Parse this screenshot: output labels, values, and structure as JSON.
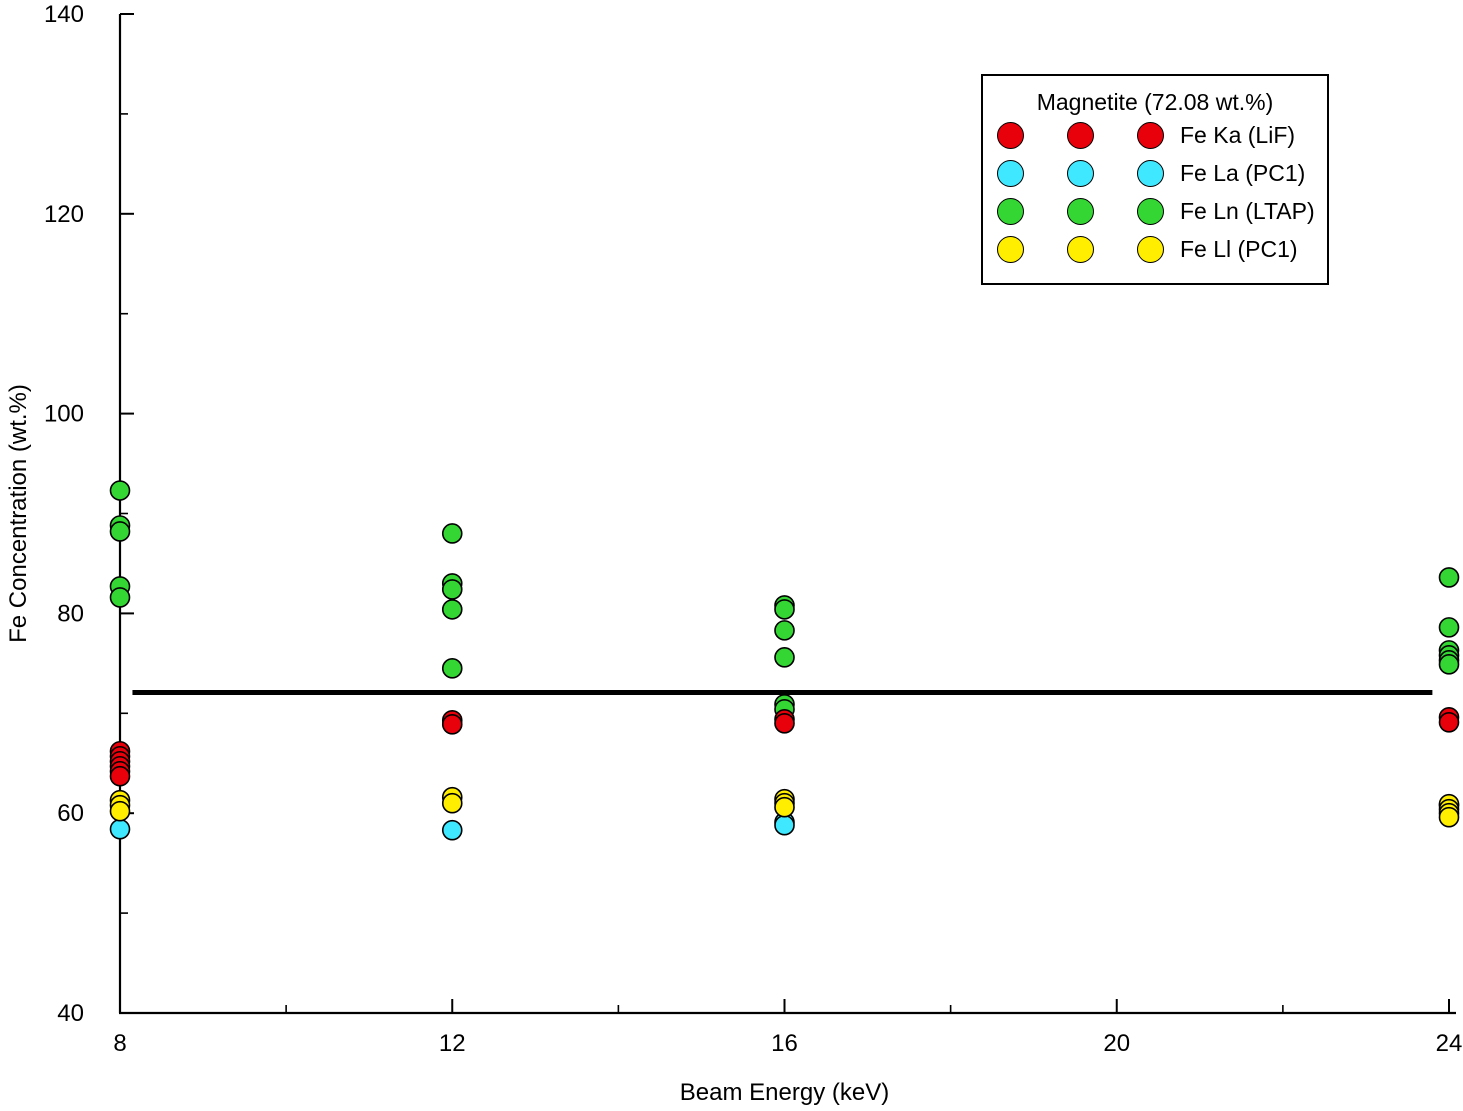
{
  "chart_data": {
    "type": "scatter",
    "title": "",
    "xlabel": "Beam Energy (keV)",
    "ylabel": "Fe Concentration (wt.%)",
    "xlim": [
      8,
      24
    ],
    "ylim": [
      40,
      140
    ],
    "x_major_ticks": [
      8,
      12,
      16,
      20,
      24
    ],
    "x_minor_ticks": [
      10,
      14,
      18,
      22
    ],
    "y_major_ticks": [
      40,
      60,
      80,
      100,
      120,
      140
    ],
    "y_minor_ticks": [
      50,
      70,
      90,
      110,
      130
    ],
    "grid": false,
    "reference_line": {
      "y": 72.08,
      "color": "#000000",
      "label": "Magnetite nominal 72.08 wt.%"
    },
    "legend": {
      "title": "Magnetite (72.08 wt.%)",
      "position": "top-right",
      "swatches_per_entry": 3
    },
    "series": [
      {
        "name": "Fe Ka (LiF)",
        "color": "#e8000b",
        "points": [
          [
            8,
            66.2
          ],
          [
            8,
            65.7
          ],
          [
            8,
            65.2
          ],
          [
            8,
            64.7
          ],
          [
            8,
            64.2
          ],
          [
            8,
            63.7
          ],
          [
            12,
            69.3
          ],
          [
            12,
            68.9
          ],
          [
            16,
            69.4
          ],
          [
            16,
            69.0
          ],
          [
            24,
            69.6
          ],
          [
            24,
            69.1
          ]
        ]
      },
      {
        "name": "Fe La (PC1)",
        "color": "#40e8ff",
        "points": [
          [
            8,
            58.4
          ],
          [
            12,
            58.3
          ],
          [
            16,
            59.1
          ],
          [
            16,
            58.8
          ],
          [
            24,
            60.8
          ]
        ]
      },
      {
        "name": "Fe Ln (LTAP)",
        "color": "#33d633",
        "points": [
          [
            8,
            92.3
          ],
          [
            8,
            88.8
          ],
          [
            8,
            88.2
          ],
          [
            8,
            82.7
          ],
          [
            8,
            81.6
          ],
          [
            12,
            88.0
          ],
          [
            12,
            83.0
          ],
          [
            12,
            82.4
          ],
          [
            12,
            80.4
          ],
          [
            12,
            74.5
          ],
          [
            16,
            80.8
          ],
          [
            16,
            80.4
          ],
          [
            16,
            78.3
          ],
          [
            16,
            75.6
          ],
          [
            16,
            70.9
          ],
          [
            16,
            70.4
          ],
          [
            24,
            83.6
          ],
          [
            24,
            78.6
          ],
          [
            24,
            76.3
          ],
          [
            24,
            75.8
          ],
          [
            24,
            75.3
          ],
          [
            24,
            74.9
          ]
        ]
      },
      {
        "name": "Fe Ll (PC1)",
        "color": "#ffee00",
        "points": [
          [
            8,
            61.3
          ],
          [
            8,
            60.8
          ],
          [
            8,
            60.2
          ],
          [
            12,
            61.6
          ],
          [
            12,
            61.0
          ],
          [
            16,
            61.4
          ],
          [
            16,
            61.0
          ],
          [
            16,
            60.6
          ],
          [
            24,
            60.9
          ],
          [
            24,
            60.4
          ],
          [
            24,
            60.0
          ],
          [
            24,
            59.6
          ]
        ]
      }
    ]
  }
}
